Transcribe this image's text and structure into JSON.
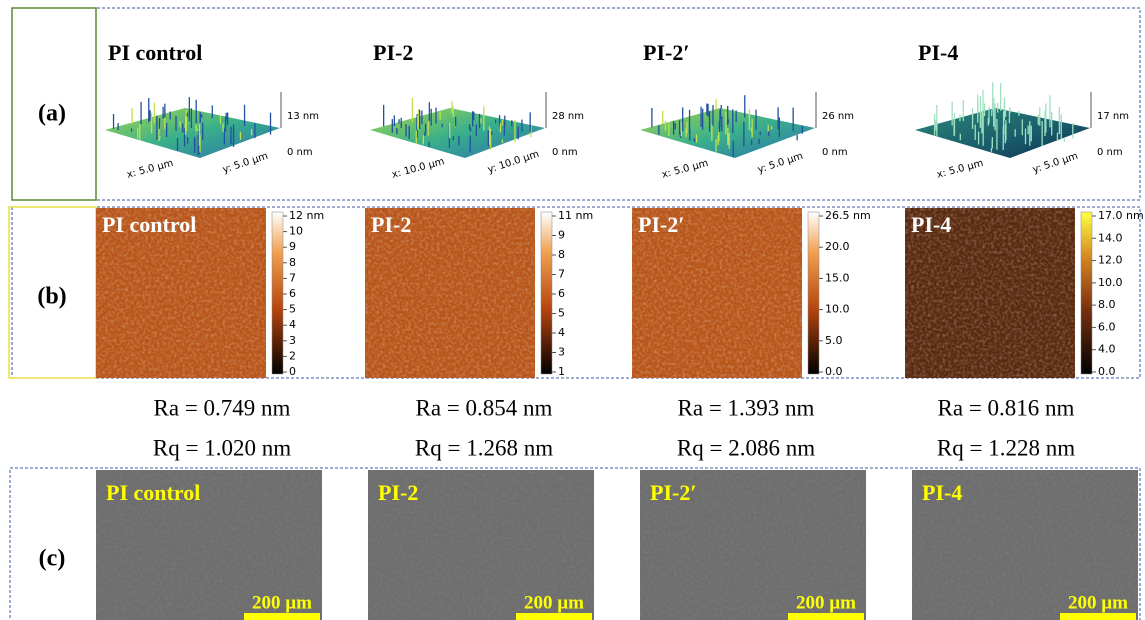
{
  "panel_a": {
    "label": "(a)",
    "samples": [
      {
        "name": "PI control",
        "z_top": "13 nm",
        "z_bottom": "0 nm",
        "x_length": "x: 5.0 µm",
        "y_length": "y: 5.0 µm"
      },
      {
        "name": "PI-2",
        "z_top": "28 nm",
        "z_bottom": "0 nm",
        "x_length": "x: 10.0 µm",
        "y_length": "y: 10.0 µm"
      },
      {
        "name": "PI-2′",
        "z_top": "26 nm",
        "z_bottom": "0 nm",
        "x_length": "x: 5.0 µm",
        "y_length": "y: 5.0 µm"
      },
      {
        "name": "PI-4",
        "z_top": "17 nm",
        "z_bottom": "0 nm",
        "x_length": "x: 5.0 µm",
        "y_length": "y: 5.0 µm"
      }
    ]
  },
  "panel_b": {
    "label": "(b)",
    "samples": [
      {
        "name": "PI control",
        "colorbar": [
          "12 nm",
          "10",
          "9",
          "8",
          "7",
          "6",
          "5",
          "4",
          "3",
          "2",
          "0"
        ]
      },
      {
        "name": "PI-2",
        "colorbar": [
          "11 nm",
          "9",
          "8",
          "7",
          "6",
          "5",
          "4",
          "3",
          "1"
        ]
      },
      {
        "name": "PI-2′",
        "colorbar": [
          "26.5 nm",
          "20.0",
          "15.0",
          "10.0",
          "5.0",
          "0.0"
        ]
      },
      {
        "name": "PI-4",
        "colorbar": [
          "17.0 nm",
          "14.0",
          "12.0",
          "10.0",
          "8.0",
          "6.0",
          "4.0",
          "0.0"
        ]
      }
    ]
  },
  "roughness": [
    {
      "ra": "Ra = 0.749 nm",
      "rq": "Rq = 1.020 nm"
    },
    {
      "ra": "Ra = 0.854 nm",
      "rq": "Rq = 1.268 nm"
    },
    {
      "ra": "Ra = 1.393 nm",
      "rq": "Rq = 2.086 nm"
    },
    {
      "ra": "Ra = 0.816 nm",
      "rq": "Rq = 1.228 nm"
    }
  ],
  "panel_c": {
    "label": "(c)",
    "samples": [
      {
        "name": "PI control",
        "scale_bar": "200 µm"
      },
      {
        "name": "PI-2",
        "scale_bar": "200 µm"
      },
      {
        "name": "PI-2′",
        "scale_bar": "200 µm"
      },
      {
        "name": "PI-4",
        "scale_bar": "200 µm"
      }
    ]
  }
}
